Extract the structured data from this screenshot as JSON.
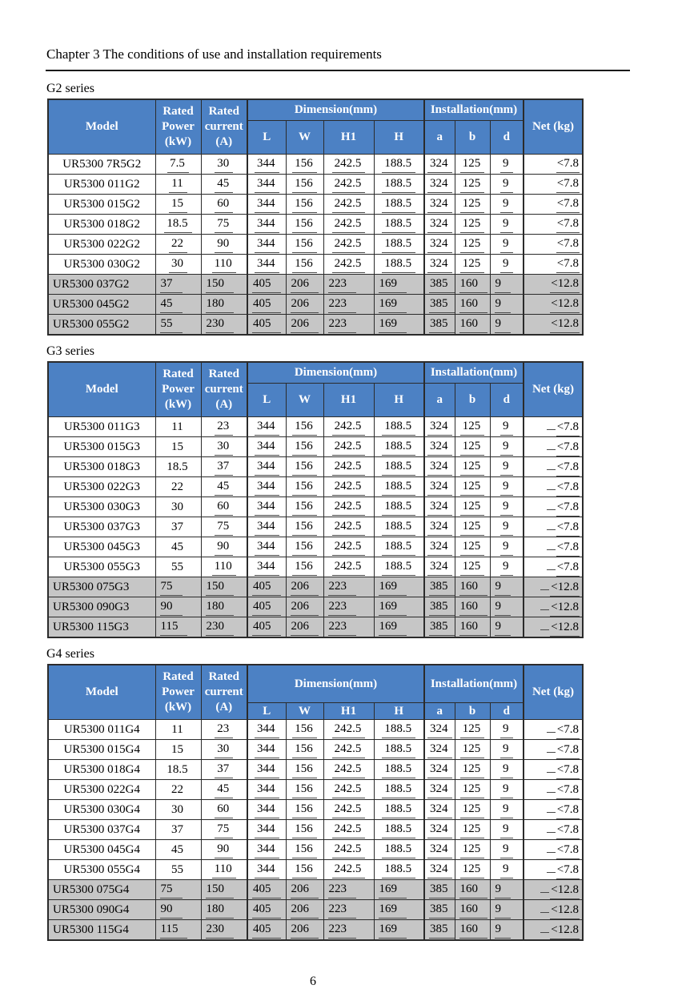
{
  "page": {
    "chapter_title": "Chapter 3 The conditions of use and installation requirements",
    "page_number": "6"
  },
  "colors": {
    "header_bg": "#4c81c4",
    "header_text": "#ffffff",
    "highlight_row_bg": "#c6c6c6",
    "border": "#2b2b2b"
  },
  "table_header": {
    "model": "Model",
    "rated_power_lines": [
      "Rated",
      "Power",
      "(kW)"
    ],
    "rated_current_lines": [
      "Rated",
      "current",
      "(A)"
    ],
    "dimension_group": "Dimension(mm)",
    "installation_group": "Installation(mm)",
    "dimension_cols": [
      "L",
      "W",
      "H1",
      "H"
    ],
    "installation_cols": [
      "a",
      "b",
      "d"
    ],
    "net": "Net (kg)"
  },
  "tables": [
    {
      "id": "g2",
      "series_label": "G2 series",
      "net_prefix_underline": false,
      "rows": [
        {
          "model": "UR5300 7R5G2",
          "power": "7.5",
          "current": "30",
          "L": "344",
          "W": "156",
          "H1": "242.5",
          "H": "188.5",
          "a": "324",
          "b": "125",
          "d": "9",
          "net": "<7.8",
          "highlight": false
        },
        {
          "model": "UR5300 011G2",
          "power": "11",
          "current": "45",
          "L": "344",
          "W": "156",
          "H1": "242.5",
          "H": "188.5",
          "a": "324",
          "b": "125",
          "d": "9",
          "net": "<7.8",
          "highlight": false
        },
        {
          "model": "UR5300 015G2",
          "power": "15",
          "current": "60",
          "L": "344",
          "W": "156",
          "H1": "242.5",
          "H": "188.5",
          "a": "324",
          "b": "125",
          "d": "9",
          "net": "<7.8",
          "highlight": false
        },
        {
          "model": "UR5300 018G2",
          "power": "18.5",
          "current": "75",
          "L": "344",
          "W": "156",
          "H1": "242.5",
          "H": "188.5",
          "a": "324",
          "b": "125",
          "d": "9",
          "net": "<7.8",
          "highlight": false
        },
        {
          "model": "UR5300 022G2",
          "power": "22",
          "current": "90",
          "L": "344",
          "W": "156",
          "H1": "242.5",
          "H": "188.5",
          "a": "324",
          "b": "125",
          "d": "9",
          "net": "<7.8",
          "highlight": false
        },
        {
          "model": "UR5300 030G2",
          "power": "30",
          "current": "110",
          "L": "344",
          "W": "156",
          "H1": "242.5",
          "H": "188.5",
          "a": "324",
          "b": "125",
          "d": "9",
          "net": "<7.8",
          "highlight": false
        },
        {
          "model": "UR5300 037G2",
          "power": "37",
          "current": "150",
          "L": "405",
          "W": "206",
          "H1": "223",
          "H": "169",
          "a": "385",
          "b": "160",
          "d": "9",
          "net": "<12.8",
          "highlight": true
        },
        {
          "model": "UR5300 045G2",
          "power": "45",
          "current": "180",
          "L": "405",
          "W": "206",
          "H1": "223",
          "H": "169",
          "a": "385",
          "b": "160",
          "d": "9",
          "net": "<12.8",
          "highlight": true
        },
        {
          "model": "UR5300 055G2",
          "power": "55",
          "current": "230",
          "L": "405",
          "W": "206",
          "H1": "223",
          "H": "169",
          "a": "385",
          "b": "160",
          "d": "9",
          "net": "<12.8",
          "highlight": true
        }
      ]
    },
    {
      "id": "g3",
      "series_label": "G3 series",
      "net_prefix_underline": true,
      "rows": [
        {
          "model": "UR5300 011G3",
          "power": "11",
          "current": "23",
          "L": "344",
          "W": "156",
          "H1": "242.5",
          "H": "188.5",
          "a": "324",
          "b": "125",
          "d": "9",
          "net": "<7.8",
          "highlight": false
        },
        {
          "model": "UR5300 015G3",
          "power": "15",
          "current": "30",
          "L": "344",
          "W": "156",
          "H1": "242.5",
          "H": "188.5",
          "a": "324",
          "b": "125",
          "d": "9",
          "net": "<7.8",
          "highlight": false
        },
        {
          "model": "UR5300 018G3",
          "power": "18.5",
          "current": "37",
          "L": "344",
          "W": "156",
          "H1": "242.5",
          "H": "188.5",
          "a": "324",
          "b": "125",
          "d": "9",
          "net": "<7.8",
          "highlight": false
        },
        {
          "model": "UR5300 022G3",
          "power": "22",
          "current": "45",
          "L": "344",
          "W": "156",
          "H1": "242.5",
          "H": "188.5",
          "a": "324",
          "b": "125",
          "d": "9",
          "net": "<7.8",
          "highlight": false
        },
        {
          "model": "UR5300 030G3",
          "power": "30",
          "current": "60",
          "L": "344",
          "W": "156",
          "H1": "242.5",
          "H": "188.5",
          "a": "324",
          "b": "125",
          "d": "9",
          "net": "<7.8",
          "highlight": false
        },
        {
          "model": "UR5300 037G3",
          "power": "37",
          "current": "75",
          "L": "344",
          "W": "156",
          "H1": "242.5",
          "H": "188.5",
          "a": "324",
          "b": "125",
          "d": "9",
          "net": "<7.8",
          "highlight": false
        },
        {
          "model": "UR5300 045G3",
          "power": "45",
          "current": "90",
          "L": "344",
          "W": "156",
          "H1": "242.5",
          "H": "188.5",
          "a": "324",
          "b": "125",
          "d": "9",
          "net": "<7.8",
          "highlight": false
        },
        {
          "model": "UR5300 055G3",
          "power": "55",
          "current": "110",
          "L": "344",
          "W": "156",
          "H1": "242.5",
          "H": "188.5",
          "a": "324",
          "b": "125",
          "d": "9",
          "net": "<7.8",
          "highlight": false
        },
        {
          "model": "UR5300 075G3",
          "power": "75",
          "current": "150",
          "L": "405",
          "W": "206",
          "H1": "223",
          "H": "169",
          "a": "385",
          "b": "160",
          "d": "9",
          "net": "<12.8",
          "highlight": true
        },
        {
          "model": "UR5300 090G3",
          "power": "90",
          "current": "180",
          "L": "405",
          "W": "206",
          "H1": "223",
          "H": "169",
          "a": "385",
          "b": "160",
          "d": "9",
          "net": "<12.8",
          "highlight": true
        },
        {
          "model": "UR5300 115G3",
          "power": "115",
          "current": "230",
          "L": "405",
          "W": "206",
          "H1": "223",
          "H": "169",
          "a": "385",
          "b": "160",
          "d": "9",
          "net": "<12.8",
          "highlight": true
        }
      ]
    },
    {
      "id": "g4",
      "series_label": "G4 series",
      "net_prefix_underline": true,
      "rows": [
        {
          "model": "UR5300 011G4",
          "power": "11",
          "current": "23",
          "L": "344",
          "W": "156",
          "H1": "242.5",
          "H": "188.5",
          "a": "324",
          "b": "125",
          "d": "9",
          "net": "<7.8",
          "highlight": false
        },
        {
          "model": "UR5300 015G4",
          "power": "15",
          "current": "30",
          "L": "344",
          "W": "156",
          "H1": "242.5",
          "H": "188.5",
          "a": "324",
          "b": "125",
          "d": "9",
          "net": "<7.8",
          "highlight": false
        },
        {
          "model": "UR5300 018G4",
          "power": "18.5",
          "current": "37",
          "L": "344",
          "W": "156",
          "H1": "242.5",
          "H": "188.5",
          "a": "324",
          "b": "125",
          "d": "9",
          "net": "<7.8",
          "highlight": false
        },
        {
          "model": "UR5300 022G4",
          "power": "22",
          "current": "45",
          "L": "344",
          "W": "156",
          "H1": "242.5",
          "H": "188.5",
          "a": "324",
          "b": "125",
          "d": "9",
          "net": "<7.8",
          "highlight": false
        },
        {
          "model": "UR5300 030G4",
          "power": "30",
          "current": "60",
          "L": "344",
          "W": "156",
          "H1": "242.5",
          "H": "188.5",
          "a": "324",
          "b": "125",
          "d": "9",
          "net": "<7.8",
          "highlight": false
        },
        {
          "model": "UR5300 037G4",
          "power": "37",
          "current": "75",
          "L": "344",
          "W": "156",
          "H1": "242.5",
          "H": "188.5",
          "a": "324",
          "b": "125",
          "d": "9",
          "net": "<7.8",
          "highlight": false
        },
        {
          "model": "UR5300 045G4",
          "power": "45",
          "current": "90",
          "L": "344",
          "W": "156",
          "H1": "242.5",
          "H": "188.5",
          "a": "324",
          "b": "125",
          "d": "9",
          "net": "<7.8",
          "highlight": false
        },
        {
          "model": "UR5300 055G4",
          "power": "55",
          "current": "110",
          "L": "344",
          "W": "156",
          "H1": "242.5",
          "H": "188.5",
          "a": "324",
          "b": "125",
          "d": "9",
          "net": "<7.8",
          "highlight": false
        },
        {
          "model": "UR5300 075G4",
          "power": "75",
          "current": "150",
          "L": "405",
          "W": "206",
          "H1": "223",
          "H": "169",
          "a": "385",
          "b": "160",
          "d": "9",
          "net": "<12.8",
          "highlight": true
        },
        {
          "model": "UR5300 090G4",
          "power": "90",
          "current": "180",
          "L": "405",
          "W": "206",
          "H1": "223",
          "H": "169",
          "a": "385",
          "b": "160",
          "d": "9",
          "net": "<12.8",
          "highlight": true
        },
        {
          "model": "UR5300 115G4",
          "power": "115",
          "current": "230",
          "L": "405",
          "W": "206",
          "H1": "223",
          "H": "169",
          "a": "385",
          "b": "160",
          "d": "9",
          "net": "<12.8",
          "highlight": true
        }
      ]
    }
  ]
}
